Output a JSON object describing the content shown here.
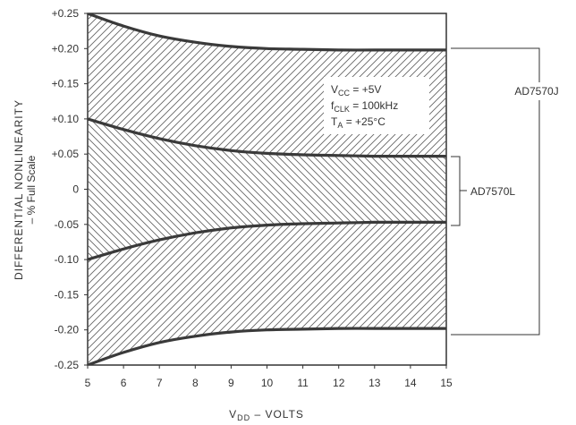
{
  "chart_data": {
    "type": "area",
    "title": "",
    "xlabel_main": "V",
    "xlabel_sub": "DD",
    "xlabel_rest": " – VOLTS",
    "ylabel": "DIFFERENTIAL NONLINEARITY",
    "ylabel2": "– % Full Scale",
    "xlim": [
      5,
      15
    ],
    "ylim": [
      -0.25,
      0.25
    ],
    "x_ticks": [
      "5",
      "6",
      "7",
      "8",
      "9",
      "10",
      "11",
      "12",
      "13",
      "14",
      "15"
    ],
    "y_ticks": [
      "+0.25",
      "+0.20",
      "+0.15",
      "+0.10",
      "+0.05",
      "0",
      "-0.05",
      "-0.10",
      "-0.15",
      "-0.20",
      "-0.25"
    ],
    "x": [
      5,
      6,
      7,
      8,
      9,
      10,
      11,
      12,
      13,
      14,
      15
    ],
    "series": [
      {
        "name": "AD7570J",
        "upper": [
          0.25,
          0.232,
          0.218,
          0.209,
          0.203,
          0.2,
          0.199,
          0.198,
          0.198,
          0.198,
          0.198
        ],
        "lower": [
          -0.25,
          -0.232,
          -0.218,
          -0.209,
          -0.203,
          -0.2,
          -0.199,
          -0.198,
          -0.198,
          -0.198,
          -0.198
        ]
      },
      {
        "name": "AD7570L",
        "upper": [
          0.1,
          0.085,
          0.072,
          0.062,
          0.055,
          0.051,
          0.049,
          0.048,
          0.047,
          0.047,
          0.047
        ],
        "lower": [
          -0.1,
          -0.085,
          -0.072,
          -0.062,
          -0.055,
          -0.051,
          -0.049,
          -0.048,
          -0.047,
          -0.047,
          -0.047
        ]
      }
    ],
    "annotations": {
      "vcc_main": "V",
      "vcc_sub": "CC",
      "vcc_rest": " = +5V",
      "fclk_main": "f",
      "fclk_sub": "CLK",
      "fclk_rest": " = 100kHz",
      "ta_main": "T",
      "ta_sub": "A",
      "ta_rest": " = +25°C"
    },
    "grid": false,
    "colors": {
      "line": "#3a3a3a",
      "hatch": "#666666",
      "frame": "#333333"
    }
  }
}
